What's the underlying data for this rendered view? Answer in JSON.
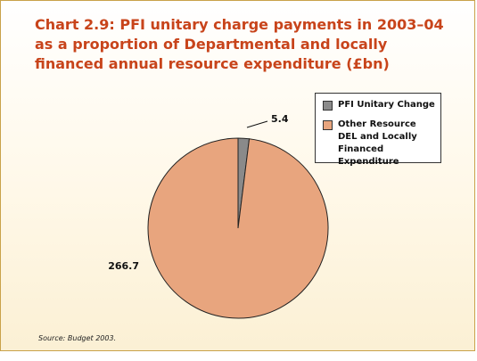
{
  "chart_data": {
    "type": "pie",
    "title": "Chart 2.9: PFI unitary charge payments in 2003–04 as a proportion of Departmental and locally financed annual resource expenditure (£bn)",
    "slices": [
      {
        "label": "PFI Unitary Change",
        "value": 5.4,
        "display": "5.4",
        "color": "#8a8a8a"
      },
      {
        "label": "Other Resource DEL and Locally Financed Expenditure",
        "value": 266.7,
        "display": "266.7",
        "color": "#e8a57e"
      }
    ],
    "legend_position": "top-right",
    "source": "Source: Budget 2003."
  }
}
